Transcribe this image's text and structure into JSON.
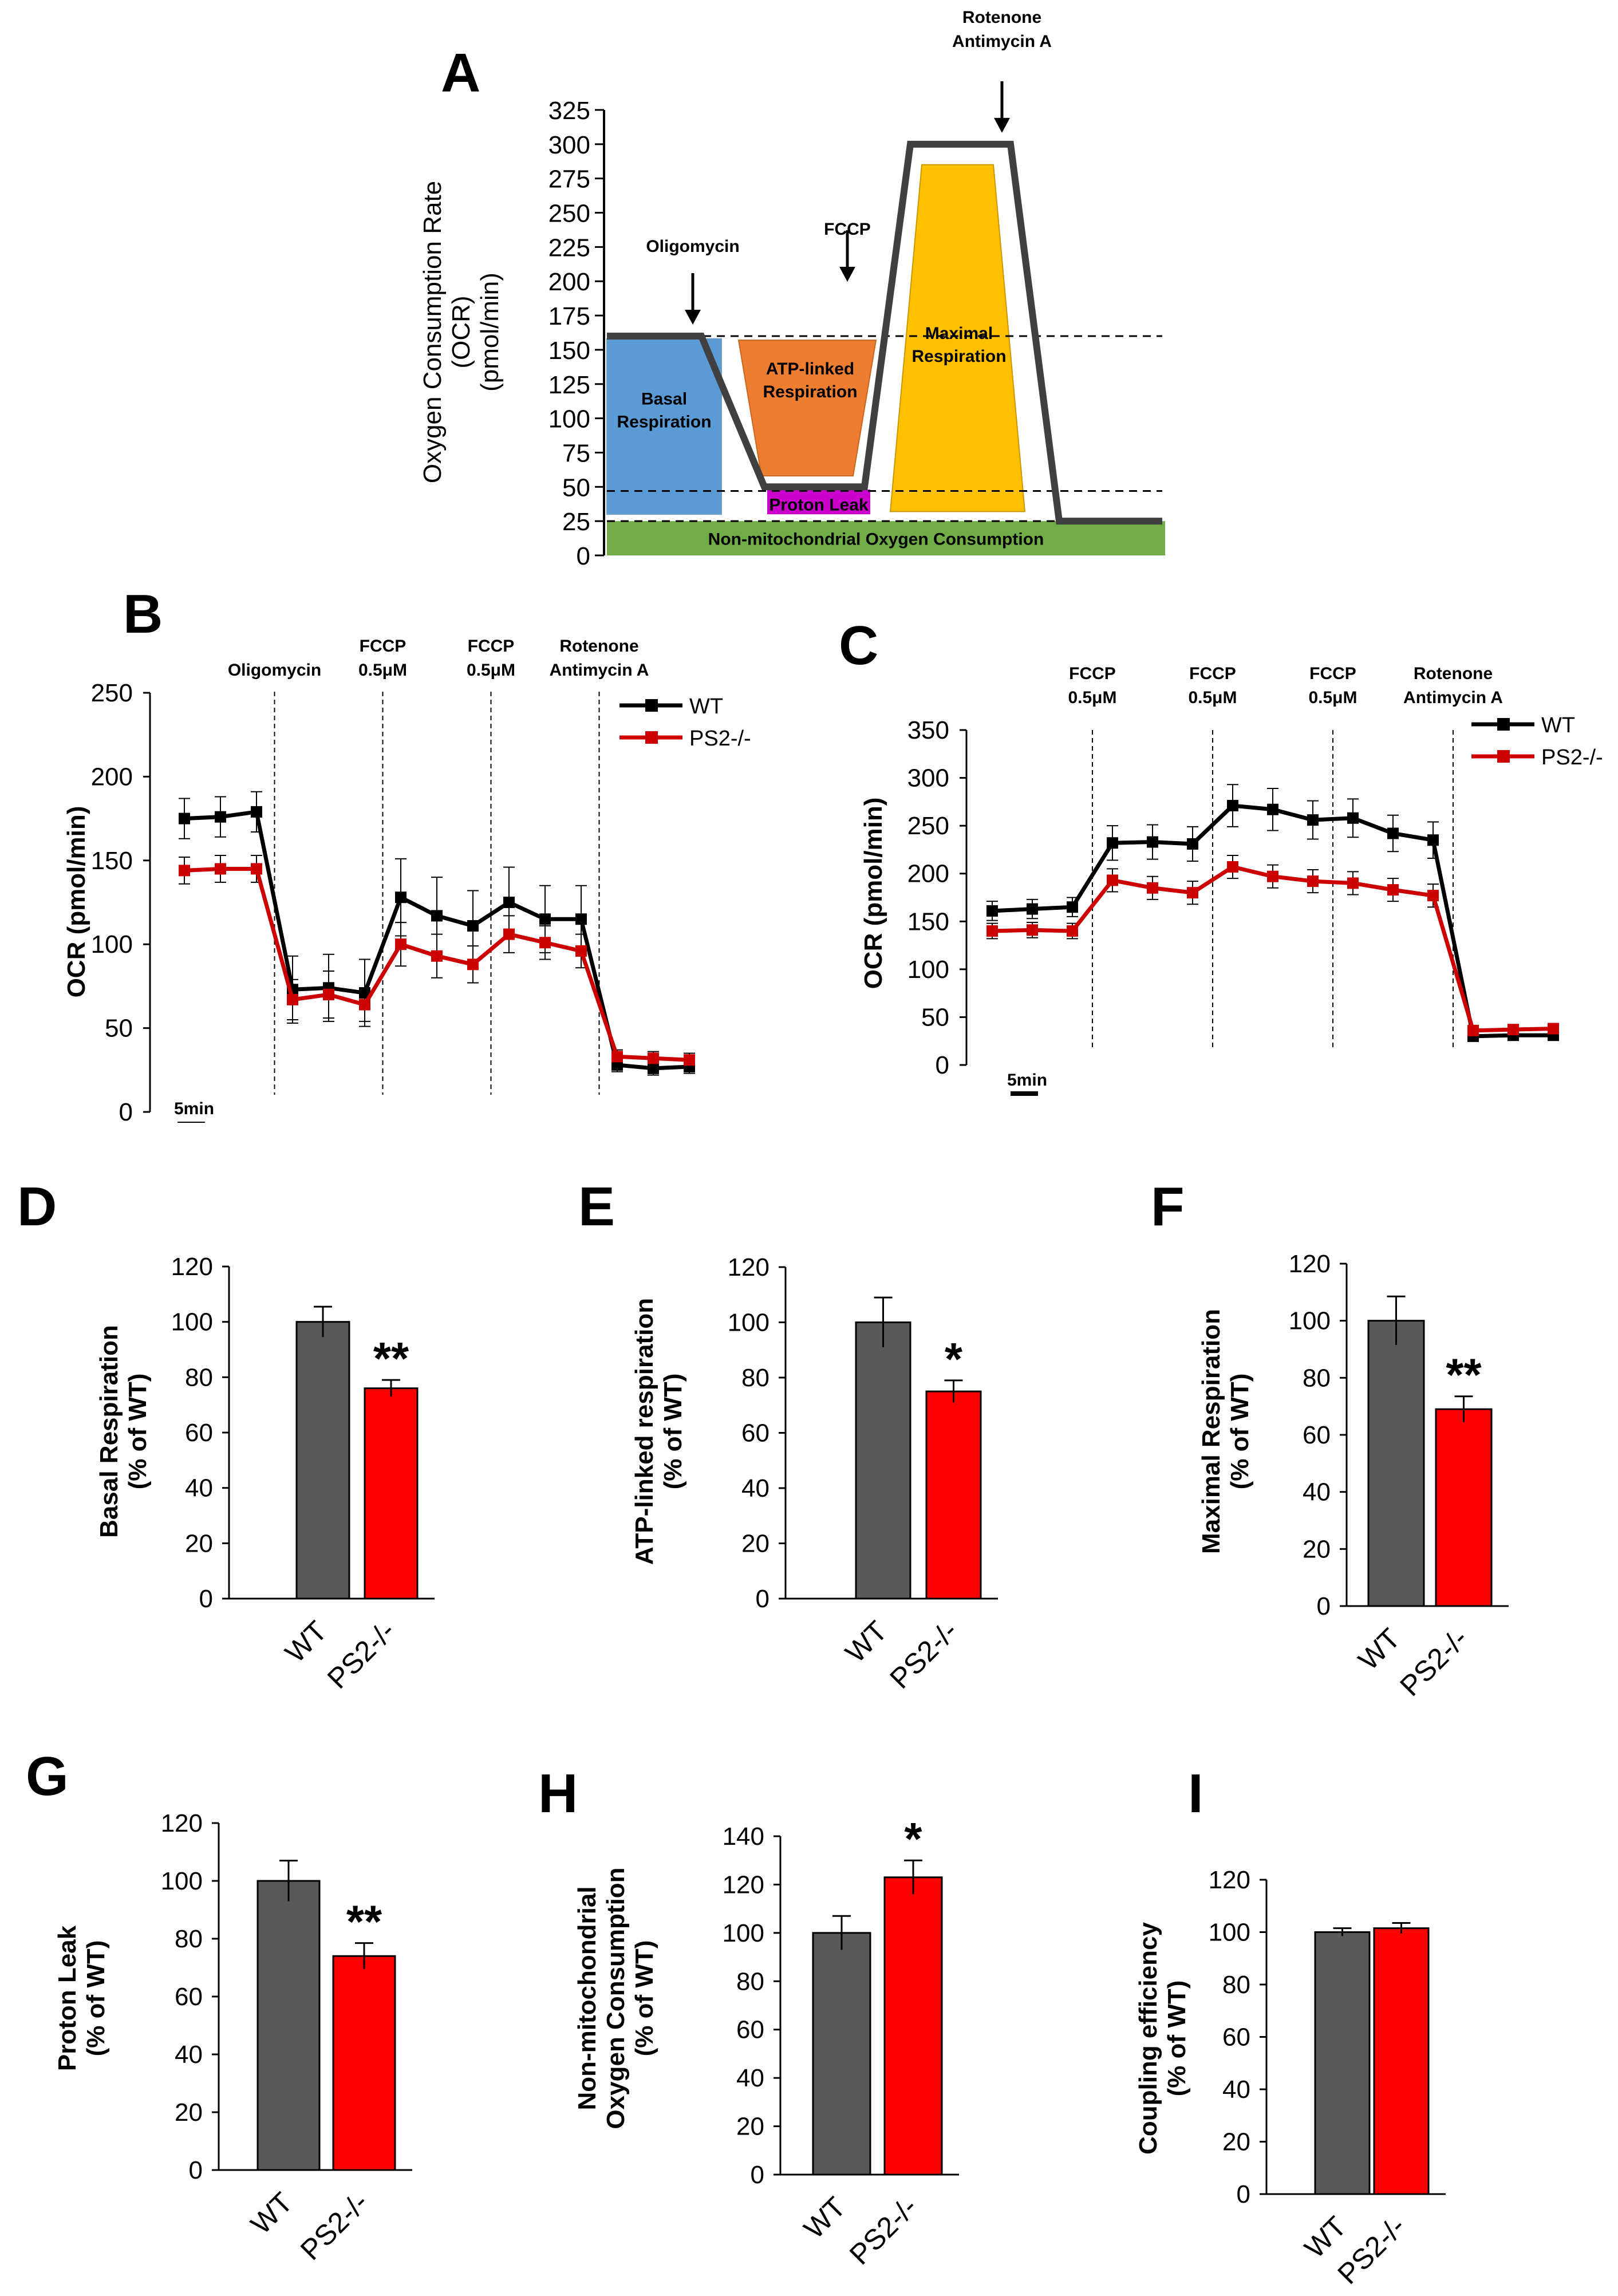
{
  "panel_labels": [
    "A",
    "B",
    "C",
    "D",
    "E",
    "F",
    "G",
    "H",
    "I"
  ],
  "chart_data": [
    {
      "panel": "A",
      "type": "line",
      "ylabel_lines": [
        "Oxygen Consumption Rate",
        "(OCR)",
        "(pmol/min)"
      ],
      "yticks": [
        0,
        25,
        50,
        75,
        100,
        125,
        150,
        175,
        200,
        225,
        250,
        275,
        300,
        325
      ],
      "ylim": [
        0,
        325
      ],
      "injections": [
        {
          "label_lines": [
            "Oligomycin"
          ],
          "x": 1
        },
        {
          "label_lines": [
            "FCCP"
          ],
          "x": 2
        },
        {
          "label_lines": [
            "Rotenone",
            "Antimycin A"
          ],
          "x": 3
        }
      ],
      "trace": [
        [
          0,
          160
        ],
        [
          1,
          160
        ],
        [
          1.4,
          50
        ],
        [
          2,
          50
        ],
        [
          2.4,
          300
        ],
        [
          3,
          300
        ],
        [
          3.4,
          25
        ],
        [
          4,
          25
        ]
      ],
      "reference_lines": [
        160,
        47,
        25
      ],
      "regions": [
        {
          "name": "Basal Respiration",
          "label_lines": [
            "Basal",
            "Respiration"
          ],
          "color": "#5B9BD5"
        },
        {
          "name": "ATP-linked Respiration",
          "label_lines": [
            "ATP-linked",
            "Respiration"
          ],
          "color": "#ED7D31"
        },
        {
          "name": "Proton Leak",
          "label_lines": [
            "Proton Leak"
          ],
          "color": "#CC00CC"
        },
        {
          "name": "Maximal Respiration",
          "label_lines": [
            "Maximal",
            "Respiration"
          ],
          "color": "#FFC000"
        },
        {
          "name": "Non-mitochondrial Oxygen Consumption",
          "label_lines": [
            "Non-mitochondrial  Oxygen Consumption"
          ],
          "color": "#70AD47"
        }
      ]
    },
    {
      "panel": "B",
      "type": "line",
      "ylabel": "OCR (pmol/min)",
      "ylim": [
        0,
        250
      ],
      "yticks": [
        0,
        50,
        100,
        150,
        200,
        250
      ],
      "x": [
        1,
        2,
        3,
        4,
        5,
        6,
        7,
        8,
        9,
        10,
        11,
        12,
        13,
        14,
        15,
        16,
        17,
        18
      ],
      "series": [
        {
          "name": "WT",
          "color": "#000000",
          "values": [
            175,
            176,
            179,
            73,
            74,
            71,
            128,
            117,
            111,
            125,
            115,
            115,
            28,
            26,
            27,
            null,
            null,
            null
          ],
          "errors": [
            12,
            12,
            12,
            20,
            20,
            20,
            23,
            23,
            21,
            21,
            20,
            20,
            4,
            4,
            4,
            null,
            null,
            null
          ]
        },
        {
          "name": "PS2-/-",
          "color": "#CC0000",
          "values": [
            144,
            145,
            145,
            67,
            70,
            64,
            100,
            93,
            88,
            106,
            101,
            96,
            33,
            32,
            31,
            null,
            null,
            null
          ],
          "errors": [
            8,
            8,
            8,
            12,
            14,
            10,
            13,
            13,
            11,
            11,
            10,
            10,
            4,
            4,
            4,
            null,
            null,
            null
          ]
        }
      ],
      "injections": [
        {
          "label_lines": [
            "Oligomycin"
          ],
          "after_index": 2
        },
        {
          "label_lines": [
            "FCCP",
            "0.5μM"
          ],
          "after_index": 5
        },
        {
          "label_lines": [
            "FCCP",
            "0.5μM"
          ],
          "after_index": 8
        },
        {
          "label_lines": [
            "Rotenone",
            "Antimycin A"
          ],
          "after_index": 11
        }
      ],
      "scale_bar": "5min"
    },
    {
      "panel": "C",
      "type": "line",
      "ylabel": "OCR (pmol/min)",
      "ylim": [
        0,
        350
      ],
      "yticks": [
        0,
        50,
        100,
        150,
        200,
        250,
        300,
        350
      ],
      "x": [
        1,
        2,
        3,
        4,
        5,
        6,
        7,
        8,
        9,
        10,
        11,
        12,
        13,
        14,
        15
      ],
      "series": [
        {
          "name": "WT",
          "color": "#000000",
          "values": [
            161,
            163,
            165,
            232,
            233,
            231,
            271,
            267,
            256,
            258,
            242,
            235,
            30,
            31,
            31
          ],
          "errors": [
            10,
            10,
            10,
            18,
            18,
            18,
            22,
            22,
            20,
            20,
            19,
            19,
            4,
            4,
            4
          ]
        },
        {
          "name": "PS2-/-",
          "color": "#CC0000",
          "values": [
            140,
            141,
            140,
            193,
            185,
            180,
            207,
            197,
            192,
            190,
            183,
            177,
            36,
            37,
            38
          ],
          "errors": [
            8,
            8,
            8,
            12,
            12,
            12,
            12,
            12,
            12,
            12,
            12,
            12,
            4,
            4,
            4
          ]
        }
      ],
      "injections": [
        {
          "label_lines": [
            "FCCP",
            "0.5μM"
          ],
          "after_index": 2
        },
        {
          "label_lines": [
            "FCCP",
            "0.5μM"
          ],
          "after_index": 5
        },
        {
          "label_lines": [
            "FCCP",
            "0.5μM"
          ],
          "after_index": 8
        },
        {
          "label_lines": [
            "Rotenone",
            "Antimycin A"
          ],
          "after_index": 11
        }
      ],
      "scale_bar": "5min"
    },
    {
      "panel": "D",
      "type": "bar",
      "ylabel_lines": [
        "Basal Respiration",
        "(% of WT)"
      ],
      "ylim": [
        0,
        120
      ],
      "yticks": [
        0,
        20,
        40,
        60,
        80,
        100,
        120
      ],
      "categories": [
        "WT",
        "PS2-/-"
      ],
      "values": [
        100,
        76
      ],
      "errors": [
        5.5,
        3
      ],
      "colors": [
        "#595959",
        "#FF0000"
      ],
      "significance": "**"
    },
    {
      "panel": "E",
      "type": "bar",
      "ylabel_lines": [
        "ATP-linked respiration",
        "(% of  WT)"
      ],
      "ylim": [
        0,
        120
      ],
      "yticks": [
        0,
        20,
        40,
        60,
        80,
        100,
        120
      ],
      "categories": [
        "WT",
        "PS2-/-"
      ],
      "values": [
        100,
        75
      ],
      "errors": [
        9,
        4
      ],
      "colors": [
        "#595959",
        "#FF0000"
      ],
      "significance": "*"
    },
    {
      "panel": "F",
      "type": "bar",
      "ylabel_lines": [
        "Maximal Respiration",
        "(% of WT)"
      ],
      "ylim": [
        0,
        120
      ],
      "yticks": [
        0,
        20,
        40,
        60,
        80,
        100,
        120
      ],
      "categories": [
        "WT",
        "PS2-/-"
      ],
      "values": [
        100,
        69
      ],
      "errors": [
        8.5,
        4.5
      ],
      "colors": [
        "#595959",
        "#FF0000"
      ],
      "significance": "**"
    },
    {
      "panel": "G",
      "type": "bar",
      "ylabel_lines": [
        "Proton Leak",
        "(% of WT)"
      ],
      "ylim": [
        0,
        120
      ],
      "yticks": [
        0,
        20,
        40,
        60,
        80,
        100,
        120
      ],
      "categories": [
        "WT",
        "PS2-/-"
      ],
      "values": [
        100,
        74
      ],
      "errors": [
        7,
        4.5
      ],
      "colors": [
        "#595959",
        "#FF0000"
      ],
      "significance": "**"
    },
    {
      "panel": "H",
      "type": "bar",
      "ylabel_lines": [
        "Non-mitochondrial",
        "Oxygen Consumption",
        "(% of WT)"
      ],
      "ylim": [
        0,
        140
      ],
      "yticks": [
        0,
        20,
        40,
        60,
        80,
        100,
        120,
        140
      ],
      "categories": [
        "WT",
        "PS2-/-"
      ],
      "values": [
        100,
        123
      ],
      "errors": [
        7,
        7
      ],
      "colors": [
        "#595959",
        "#FF0000"
      ],
      "significance": "*"
    },
    {
      "panel": "I",
      "type": "bar",
      "ylabel_lines": [
        "Coupling efficiency",
        "(% of WT)"
      ],
      "ylim": [
        0,
        120
      ],
      "yticks": [
        0,
        20,
        40,
        60,
        80,
        100,
        120
      ],
      "categories": [
        "WT",
        "PS2-/-"
      ],
      "values": [
        100,
        101.5
      ],
      "errors": [
        1.5,
        2
      ],
      "colors": [
        "#595959",
        "#FF0000"
      ],
      "significance": ""
    }
  ]
}
